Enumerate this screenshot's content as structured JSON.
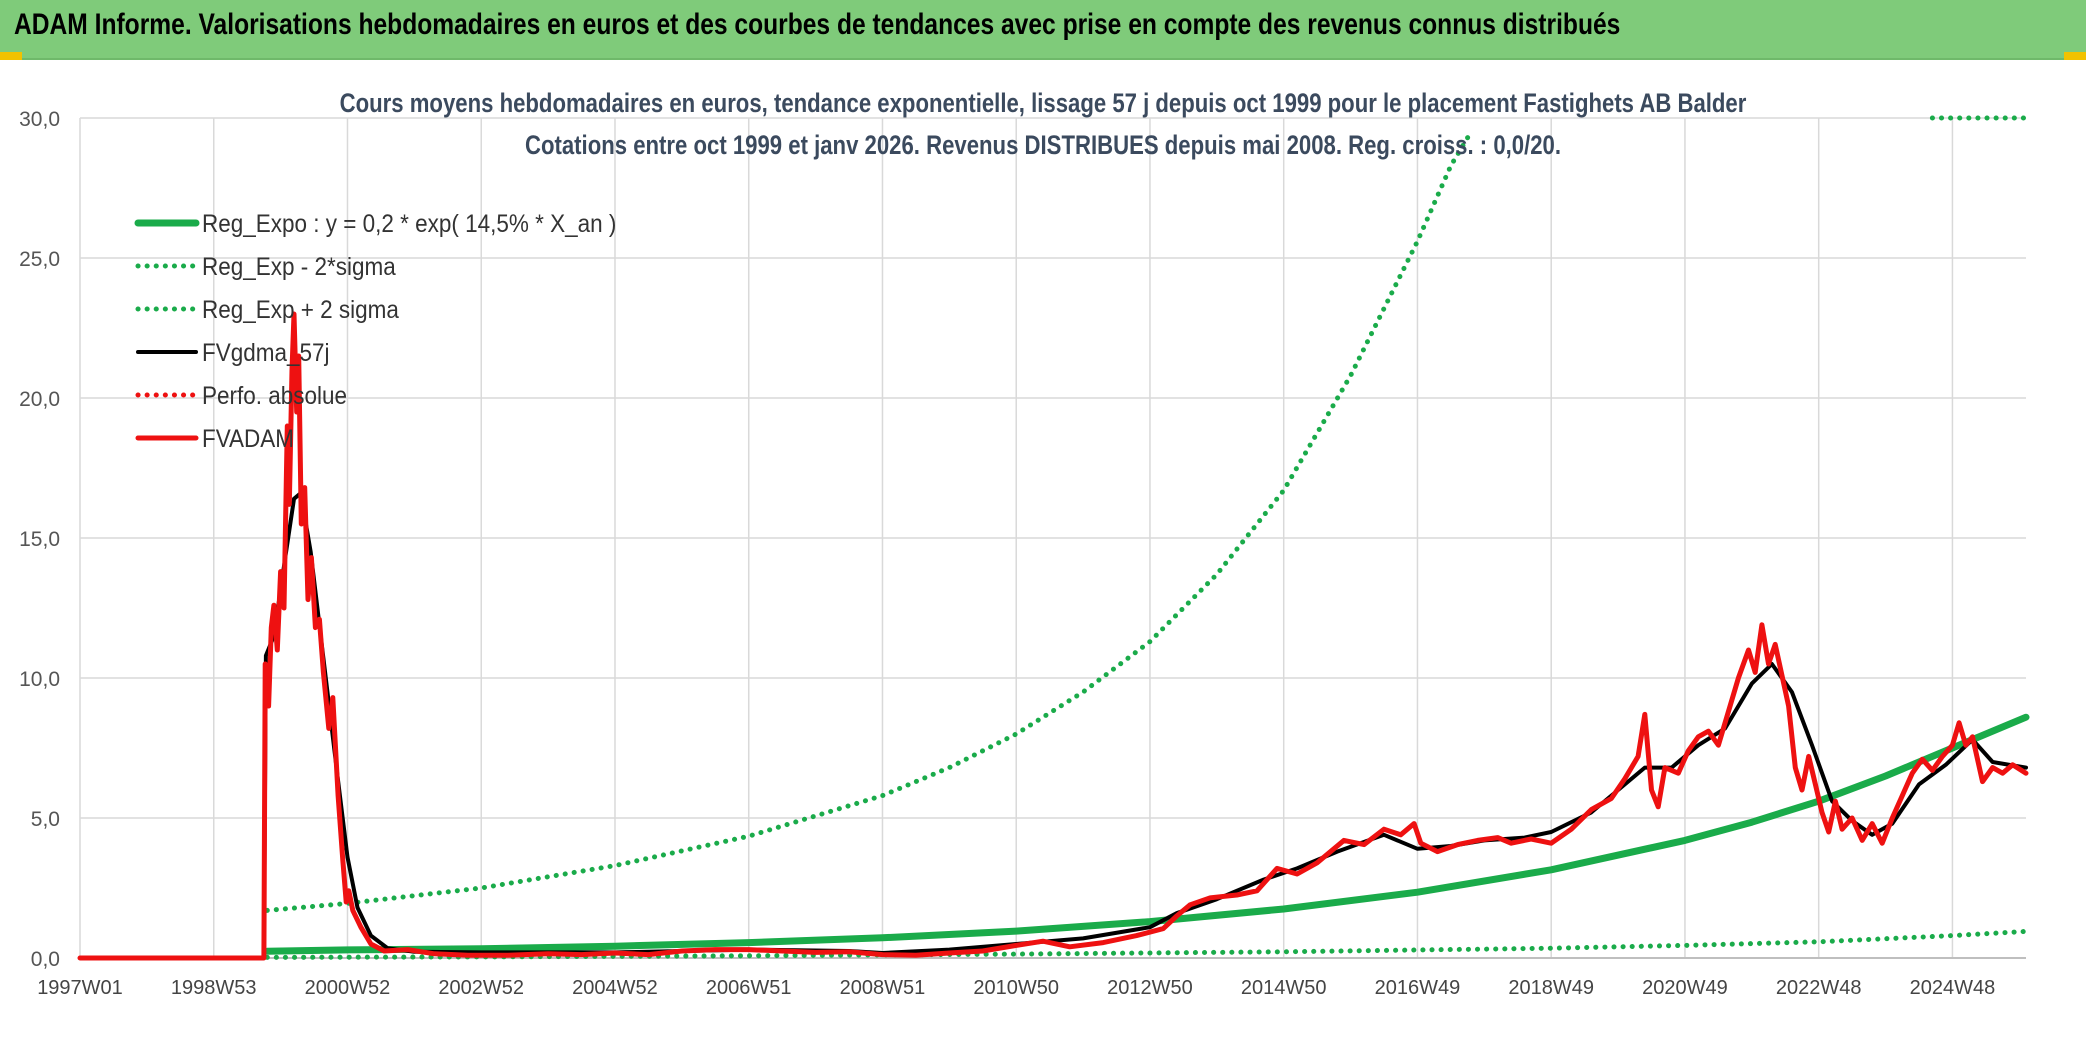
{
  "header": {
    "title": "ADAM Informe. Valorisations hebdomadaires en euros et des courbes de tendances avec prise en compte des revenus connus distribués"
  },
  "colors": {
    "banner": "#7fcb7a",
    "green_trend": "#1aab4a",
    "black_series": "#000000",
    "red_series": "#ee1111",
    "grid": "#d9d9d9"
  },
  "chart_data": {
    "type": "line",
    "title": "Cours moyens hebdomadaires en euros, tendance exponentielle, lissage 57 j depuis oct 1999 pour le placement Fastighets AB Balder",
    "subtitle": "Cotations entre oct 1999 et janv 2026. Revenus DISTRIBUES depuis mai 2008. Reg. croiss. : 0,0/20.",
    "xlabel": "",
    "ylabel": "",
    "ylim": [
      0,
      30
    ],
    "yticks": [
      "0,0",
      "5,0",
      "10,0",
      "15,0",
      "20,0",
      "25,0",
      "30,0"
    ],
    "xlim": [
      1997.0,
      2026.1
    ],
    "xticks": [
      {
        "label": "1997W01",
        "x": 1997.0
      },
      {
        "label": "1998W53",
        "x": 1999.0
      },
      {
        "label": "2000W52",
        "x": 2001.0
      },
      {
        "label": "2002W52",
        "x": 2003.0
      },
      {
        "label": "2004W52",
        "x": 2005.0
      },
      {
        "label": "2006W51",
        "x": 2007.0
      },
      {
        "label": "2008W51",
        "x": 2009.0
      },
      {
        "label": "2010W50",
        "x": 2011.0
      },
      {
        "label": "2012W50",
        "x": 2013.0
      },
      {
        "label": "2014W50",
        "x": 2015.0
      },
      {
        "label": "2016W49",
        "x": 2017.0
      },
      {
        "label": "2018W49",
        "x": 2019.0
      },
      {
        "label": "2020W49",
        "x": 2021.0
      },
      {
        "label": "2022W48",
        "x": 2023.0
      },
      {
        "label": "2024W48",
        "x": 2025.0
      }
    ],
    "grid": true,
    "legend_position": "top-left",
    "series": [
      {
        "name": "Reg_Expo : y = 0,2 * exp( 14,5% *  X_an )",
        "style": "solid-thick",
        "color": "#1aab4a",
        "points": [
          [
            1999.8,
            0.24
          ],
          [
            2001,
            0.29
          ],
          [
            2003,
            0.33
          ],
          [
            2005,
            0.42
          ],
          [
            2007,
            0.55
          ],
          [
            2009,
            0.72
          ],
          [
            2011,
            0.96
          ],
          [
            2013,
            1.3
          ],
          [
            2015,
            1.75
          ],
          [
            2017,
            2.35
          ],
          [
            2019,
            3.15
          ],
          [
            2021,
            4.2
          ],
          [
            2022,
            4.85
          ],
          [
            2023,
            5.6
          ],
          [
            2024,
            6.5
          ],
          [
            2025,
            7.5
          ],
          [
            2026.1,
            8.6
          ]
        ]
      },
      {
        "name": "Reg_Exp - 2*sigma",
        "style": "dotted",
        "color": "#1aab4a",
        "points": [
          [
            1999.8,
            0.02
          ],
          [
            2003,
            0.04
          ],
          [
            2007,
            0.08
          ],
          [
            2011,
            0.14
          ],
          [
            2015,
            0.22
          ],
          [
            2019,
            0.35
          ],
          [
            2021,
            0.45
          ],
          [
            2023,
            0.58
          ],
          [
            2025,
            0.8
          ],
          [
            2026.1,
            0.95
          ]
        ]
      },
      {
        "name": "Reg_Exp + 2 sigma",
        "style": "dotted",
        "color": "#1aab4a",
        "points": [
          [
            1999.8,
            1.7
          ],
          [
            2001,
            1.95
          ],
          [
            2003,
            2.5
          ],
          [
            2005,
            3.3
          ],
          [
            2007,
            4.35
          ],
          [
            2009,
            5.8
          ],
          [
            2010,
            6.8
          ],
          [
            2011,
            8.0
          ],
          [
            2012,
            9.5
          ],
          [
            2013,
            11.3
          ],
          [
            2014,
            13.7
          ],
          [
            2015,
            16.7
          ],
          [
            2016,
            20.8
          ],
          [
            2017,
            25.6
          ],
          [
            2017.5,
            28.3
          ],
          [
            2017.8,
            29.5
          ]
        ],
        "cap": {
          "from": 2024.7,
          "to": 2026.1,
          "value": 30.0
        }
      },
      {
        "name": "FVgdma_57j",
        "style": "solid",
        "color": "#000000",
        "points": [
          [
            1997.0,
            0
          ],
          [
            1999.75,
            0
          ],
          [
            1999.78,
            10.8
          ],
          [
            1999.9,
            11.5
          ],
          [
            2000.05,
            14.0
          ],
          [
            2000.2,
            16.4
          ],
          [
            2000.3,
            16.6
          ],
          [
            2000.45,
            14.5
          ],
          [
            2000.65,
            10.5
          ],
          [
            2000.85,
            6.5
          ],
          [
            2001.0,
            3.6
          ],
          [
            2001.15,
            1.8
          ],
          [
            2001.35,
            0.8
          ],
          [
            2001.6,
            0.35
          ],
          [
            2002,
            0.22
          ],
          [
            2003,
            0.2
          ],
          [
            2005,
            0.2
          ],
          [
            2007,
            0.3
          ],
          [
            2008.5,
            0.25
          ],
          [
            2009,
            0.18
          ],
          [
            2010,
            0.3
          ],
          [
            2011,
            0.5
          ],
          [
            2012,
            0.7
          ],
          [
            2013,
            1.1
          ],
          [
            2013.4,
            1.6
          ],
          [
            2014,
            2.1
          ],
          [
            2014.7,
            2.8
          ],
          [
            2015.2,
            3.2
          ],
          [
            2015.8,
            3.8
          ],
          [
            2016.5,
            4.4
          ],
          [
            2017,
            3.9
          ],
          [
            2017.5,
            4.0
          ],
          [
            2018,
            4.2
          ],
          [
            2018.6,
            4.3
          ],
          [
            2019,
            4.5
          ],
          [
            2019.6,
            5.2
          ],
          [
            2020,
            6.0
          ],
          [
            2020.4,
            6.8
          ],
          [
            2020.8,
            6.8
          ],
          [
            2021.2,
            7.6
          ],
          [
            2021.6,
            8.2
          ],
          [
            2022.0,
            9.8
          ],
          [
            2022.3,
            10.5
          ],
          [
            2022.6,
            9.5
          ],
          [
            2022.9,
            7.6
          ],
          [
            2023.2,
            5.6
          ],
          [
            2023.5,
            4.9
          ],
          [
            2023.8,
            4.4
          ],
          [
            2024.1,
            4.8
          ],
          [
            2024.5,
            6.2
          ],
          [
            2024.9,
            6.9
          ],
          [
            2025.3,
            7.8
          ],
          [
            2025.6,
            7.0
          ],
          [
            2026.1,
            6.8
          ]
        ]
      },
      {
        "name": "Perfo. absolue",
        "style": "dotted",
        "color": "#ee1111",
        "points": []
      },
      {
        "name": "FVADAM",
        "style": "solid-thick",
        "color": "#ee1111",
        "points": [
          [
            1997.0,
            0
          ],
          [
            1999.75,
            0
          ],
          [
            1999.77,
            10.5
          ],
          [
            1999.82,
            9.0
          ],
          [
            1999.86,
            11.8
          ],
          [
            1999.9,
            12.6
          ],
          [
            1999.95,
            11.0
          ],
          [
            2000.0,
            13.8
          ],
          [
            2000.05,
            12.5
          ],
          [
            2000.1,
            19.0
          ],
          [
            2000.13,
            16.2
          ],
          [
            2000.17,
            21.0
          ],
          [
            2000.2,
            23.0
          ],
          [
            2000.24,
            19.5
          ],
          [
            2000.27,
            21.5
          ],
          [
            2000.31,
            15.5
          ],
          [
            2000.36,
            16.8
          ],
          [
            2000.41,
            12.8
          ],
          [
            2000.46,
            14.3
          ],
          [
            2000.52,
            11.8
          ],
          [
            2000.58,
            12.1
          ],
          [
            2000.64,
            10.2
          ],
          [
            2000.72,
            8.2
          ],
          [
            2000.78,
            9.3
          ],
          [
            2000.86,
            5.8
          ],
          [
            2000.93,
            3.5
          ],
          [
            2000.98,
            2.0
          ],
          [
            2001.02,
            2.4
          ],
          [
            2001.08,
            1.7
          ],
          [
            2001.2,
            1.1
          ],
          [
            2001.35,
            0.5
          ],
          [
            2001.55,
            0.25
          ],
          [
            2001.9,
            0.3
          ],
          [
            2002.3,
            0.15
          ],
          [
            2002.8,
            0.1
          ],
          [
            2003.4,
            0.1
          ],
          [
            2004,
            0.15
          ],
          [
            2004.5,
            0.12
          ],
          [
            2005,
            0.18
          ],
          [
            2005.5,
            0.12
          ],
          [
            2006,
            0.25
          ],
          [
            2006.5,
            0.3
          ],
          [
            2007,
            0.3
          ],
          [
            2007.5,
            0.25
          ],
          [
            2008.0,
            0.2
          ],
          [
            2008.5,
            0.22
          ],
          [
            2009.0,
            0.12
          ],
          [
            2009.5,
            0.1
          ],
          [
            2010,
            0.18
          ],
          [
            2010.5,
            0.25
          ],
          [
            2011,
            0.45
          ],
          [
            2011.4,
            0.6
          ],
          [
            2011.8,
            0.4
          ],
          [
            2012.3,
            0.55
          ],
          [
            2012.8,
            0.8
          ],
          [
            2013.2,
            1.05
          ],
          [
            2013.4,
            1.5
          ],
          [
            2013.6,
            1.9
          ],
          [
            2013.9,
            2.15
          ],
          [
            2014.3,
            2.25
          ],
          [
            2014.6,
            2.4
          ],
          [
            2014.9,
            3.2
          ],
          [
            2015.2,
            3.0
          ],
          [
            2015.5,
            3.4
          ],
          [
            2015.9,
            4.2
          ],
          [
            2016.2,
            4.05
          ],
          [
            2016.5,
            4.6
          ],
          [
            2016.75,
            4.4
          ],
          [
            2016.95,
            4.8
          ],
          [
            2017.05,
            4.1
          ],
          [
            2017.3,
            3.8
          ],
          [
            2017.6,
            4.05
          ],
          [
            2017.9,
            4.2
          ],
          [
            2018.2,
            4.3
          ],
          [
            2018.4,
            4.1
          ],
          [
            2018.7,
            4.25
          ],
          [
            2019.0,
            4.1
          ],
          [
            2019.3,
            4.6
          ],
          [
            2019.6,
            5.3
          ],
          [
            2019.9,
            5.7
          ],
          [
            2020.1,
            6.4
          ],
          [
            2020.3,
            7.2
          ],
          [
            2020.4,
            8.7
          ],
          [
            2020.5,
            6.0
          ],
          [
            2020.6,
            5.4
          ],
          [
            2020.7,
            6.8
          ],
          [
            2020.9,
            6.6
          ],
          [
            2021.05,
            7.4
          ],
          [
            2021.2,
            7.9
          ],
          [
            2021.35,
            8.1
          ],
          [
            2021.5,
            7.6
          ],
          [
            2021.65,
            8.8
          ],
          [
            2021.8,
            10.0
          ],
          [
            2021.95,
            11.0
          ],
          [
            2022.05,
            10.2
          ],
          [
            2022.15,
            11.9
          ],
          [
            2022.25,
            10.5
          ],
          [
            2022.35,
            11.2
          ],
          [
            2022.45,
            10.1
          ],
          [
            2022.55,
            9.0
          ],
          [
            2022.65,
            6.8
          ],
          [
            2022.75,
            6.0
          ],
          [
            2022.85,
            7.2
          ],
          [
            2022.95,
            6.2
          ],
          [
            2023.05,
            5.2
          ],
          [
            2023.15,
            4.5
          ],
          [
            2023.25,
            5.6
          ],
          [
            2023.35,
            4.6
          ],
          [
            2023.5,
            5.0
          ],
          [
            2023.65,
            4.2
          ],
          [
            2023.8,
            4.8
          ],
          [
            2023.95,
            4.1
          ],
          [
            2024.1,
            5.0
          ],
          [
            2024.25,
            5.8
          ],
          [
            2024.4,
            6.6
          ],
          [
            2024.55,
            7.1
          ],
          [
            2024.7,
            6.7
          ],
          [
            2024.85,
            7.2
          ],
          [
            2025.0,
            7.6
          ],
          [
            2025.1,
            8.4
          ],
          [
            2025.2,
            7.6
          ],
          [
            2025.3,
            7.9
          ],
          [
            2025.45,
            6.3
          ],
          [
            2025.6,
            6.8
          ],
          [
            2025.75,
            6.6
          ],
          [
            2025.9,
            6.9
          ],
          [
            2026.1,
            6.6
          ]
        ]
      }
    ]
  }
}
